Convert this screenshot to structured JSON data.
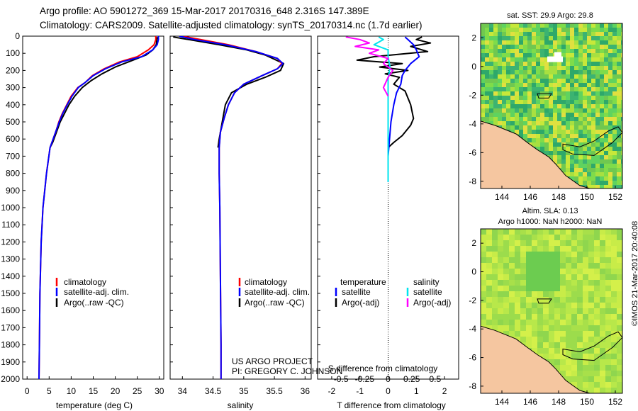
{
  "header": {
    "line1": "Argo profile: AO 5901272_369 15-Mar-2017 20170316_648 2.316S 147.389E",
    "line2": "Climatology: CARS2009. Satellite-adjusted climatology: synTS_20170314.nc (1.7d earlier)"
  },
  "colors": {
    "climatology": "#ff0000",
    "satellite": "#0000ff",
    "argo": "#000000",
    "sal_satellite": "#00e5ee",
    "sal_argo": "#ff00ff",
    "land": "#f5c6a0"
  },
  "credits": {
    "line1": "US ARGO PROJECT",
    "line2": "PI: GREGORY C. JOHNSON"
  },
  "timestamp": "©IMOS 21-Mar-2017 20:40:08",
  "chart_data": [
    {
      "id": "temperature",
      "type": "line",
      "xlabel": "temperature (deg C)",
      "ylabel": "",
      "xlim": [
        -1,
        31
      ],
      "ylim": [
        2000,
        0
      ],
      "xticks": [
        0,
        5,
        10,
        15,
        20,
        25,
        30
      ],
      "yticks": [
        0,
        100,
        200,
        300,
        400,
        500,
        600,
        700,
        800,
        900,
        1000,
        1100,
        1200,
        1300,
        1400,
        1500,
        1600,
        1700,
        1800,
        1900,
        2000
      ],
      "legend": [
        "climatology",
        "satellite-adj. clim.",
        "Argo(..raw -QC)"
      ],
      "series": [
        {
          "name": "climatology",
          "color": "#ff0000",
          "x": [
            29.2,
            29.2,
            28.8,
            27.5,
            25,
            21,
            17.5,
            14.8,
            13.2,
            11.5,
            10,
            9,
            8,
            7.2,
            6.6,
            5.2,
            4.4,
            3.6,
            3.2,
            2.9,
            2.8,
            2.7
          ],
          "y": [
            0,
            20,
            50,
            80,
            120,
            150,
            190,
            230,
            270,
            300,
            350,
            400,
            450,
            500,
            550,
            650,
            800,
            1000,
            1200,
            1500,
            1800,
            2000
          ]
        },
        {
          "name": "satellite-adj. clim.",
          "color": "#0000ff",
          "x": [
            29.8,
            29.8,
            29.5,
            28.5,
            26,
            21.5,
            17.8,
            15,
            13.2,
            11.6,
            10.2,
            9.1,
            8.1,
            7.3,
            6.6,
            5.2,
            4.4,
            3.6,
            3.2,
            2.9,
            2.8,
            2.7
          ],
          "y": [
            0,
            20,
            50,
            80,
            120,
            150,
            190,
            230,
            270,
            300,
            350,
            400,
            450,
            500,
            550,
            650,
            800,
            1000,
            1200,
            1500,
            1800,
            2000
          ]
        },
        {
          "name": "Argo(..raw -QC)",
          "color": "#000000",
          "x": [
            29.5,
            29.4,
            29.3,
            28.5,
            27,
            24,
            20,
            17,
            14.5,
            12.5,
            10.8,
            9.5,
            8.5,
            7.5,
            6.8,
            5.8,
            5.2
          ],
          "y": [
            5,
            30,
            50,
            80,
            110,
            140,
            180,
            220,
            260,
            300,
            350,
            400,
            450,
            500,
            550,
            620,
            650
          ]
        }
      ]
    },
    {
      "id": "salinity",
      "type": "line",
      "xlabel": "salinity",
      "ylabel": "",
      "xlim": [
        33.8,
        36.1
      ],
      "ylim": [
        2000,
        0
      ],
      "xticks": [
        34,
        34.5,
        35,
        35.5,
        36
      ],
      "legend": [
        "climatology",
        "satellite-adj. clim.",
        "Argo(..raw -QC)"
      ],
      "series": [
        {
          "name": "climatology",
          "color": "#ff0000",
          "x": [
            34.0,
            34.3,
            34.75,
            35.2,
            35.55,
            35.62,
            35.55,
            35.3,
            35.0,
            34.85,
            34.75,
            34.68,
            34.62,
            34.6,
            34.6,
            34.61,
            34.62,
            34.63,
            34.63
          ],
          "y": [
            0,
            20,
            50,
            90,
            130,
            160,
            190,
            230,
            280,
            330,
            400,
            480,
            560,
            650,
            800,
            1000,
            1400,
            1800,
            2000
          ]
        },
        {
          "name": "satellite-adj. clim.",
          "color": "#0000ff",
          "x": [
            33.95,
            34.2,
            34.7,
            35.2,
            35.55,
            35.64,
            35.55,
            35.3,
            35.0,
            34.85,
            34.75,
            34.68,
            34.62,
            34.6,
            34.6,
            34.61,
            34.62,
            34.63,
            34.63
          ],
          "y": [
            0,
            20,
            50,
            90,
            130,
            160,
            190,
            230,
            280,
            330,
            400,
            480,
            560,
            650,
            800,
            1000,
            1400,
            1800,
            2000
          ]
        },
        {
          "name": "Argo(..raw -QC)",
          "color": "#000000",
          "x": [
            33.85,
            34.1,
            34.6,
            35.05,
            35.35,
            35.65,
            35.6,
            35.35,
            35.05,
            34.8,
            34.7,
            34.65,
            34.6,
            34.58
          ],
          "y": [
            5,
            20,
            50,
            80,
            110,
            160,
            200,
            240,
            280,
            330,
            400,
            500,
            600,
            650
          ]
        }
      ]
    },
    {
      "id": "difference",
      "type": "line",
      "xlabel": "T difference from climatology",
      "ylabel": "",
      "xlabel2": "S difference from climatology",
      "xlim": [
        -2.5,
        2.5
      ],
      "ylim": [
        2000,
        0
      ],
      "xticks": [
        -2,
        -1,
        0,
        1,
        2
      ],
      "xticks2": [
        -0.5,
        -0.25,
        0,
        0.25,
        0.5
      ],
      "xtick2_labels": [
        "-0.5",
        "-0.25",
        "0",
        "0.25",
        "0.5"
      ],
      "legend_titles": [
        "temperature",
        "salinity"
      ],
      "legend": [
        "satellite",
        "Argo(-adj)",
        "satellite",
        "Argo(-adj)"
      ],
      "series": [
        {
          "name": "temperature satellite",
          "color": "#0000ff",
          "x": [
            0.6,
            0.7,
            0.9,
            1.0,
            1.1,
            0.8,
            0.6,
            0.5,
            0.45,
            0.3,
            0.2,
            0.1,
            0,
            0,
            0
          ],
          "y": [
            5,
            20,
            50,
            80,
            120,
            160,
            200,
            230,
            280,
            330,
            400,
            500,
            700,
            800,
            850
          ]
        },
        {
          "name": "temperature Argo(-adj)",
          "color": "#000000",
          "x": [
            1.2,
            1.0,
            1.5,
            0.8,
            1.4,
            -0.5,
            -1.1,
            0.5,
            -0.3,
            0.7,
            -0.1,
            0.4,
            0.2,
            0.6,
            0.8,
            0.9,
            0.8,
            0.5,
            0.2,
            0
          ],
          "y": [
            5,
            20,
            40,
            60,
            90,
            120,
            140,
            160,
            180,
            200,
            220,
            240,
            280,
            320,
            400,
            480,
            520,
            580,
            620,
            650
          ]
        },
        {
          "name": "salinity satellite",
          "color": "#00e5ee",
          "x": [
            -0.1,
            -0.05,
            -0.15,
            0,
            0,
            0.02,
            0,
            0,
            0,
            0,
            0,
            0
          ],
          "y": [
            5,
            20,
            50,
            80,
            120,
            180,
            250,
            320,
            450,
            600,
            750,
            850
          ]
        },
        {
          "name": "salinity Argo(-adj)",
          "color": "#ff00ff",
          "x": [
            -0.45,
            -0.3,
            -0.2,
            -0.35,
            -0.1,
            -0.2,
            0,
            -0.05,
            0.05,
            0,
            -0.05,
            0
          ],
          "y": [
            5,
            20,
            40,
            60,
            80,
            100,
            130,
            160,
            200,
            240,
            300,
            350
          ]
        }
      ]
    },
    {
      "id": "sst_map",
      "type": "heatmap",
      "title": "sat. SST: 29.9 Argo: 29.8",
      "xticks": [
        144,
        146,
        148,
        150,
        152
      ],
      "yticks": [
        2,
        0,
        -2,
        -4,
        -6,
        -8
      ],
      "xlim": [
        142.5,
        152.5
      ],
      "ylim": [
        -8.5,
        3
      ]
    },
    {
      "id": "sla_map",
      "type": "heatmap",
      "title1": "Altim. SLA: 0.13",
      "title2": "Argo h1000: NaN h2000: NaN",
      "xticks": [
        144,
        146,
        148,
        150,
        152
      ],
      "yticks": [
        2,
        0,
        -2,
        -4,
        -6,
        -8
      ],
      "xlim": [
        142.5,
        152.5
      ],
      "ylim": [
        -8.5,
        3
      ]
    }
  ]
}
